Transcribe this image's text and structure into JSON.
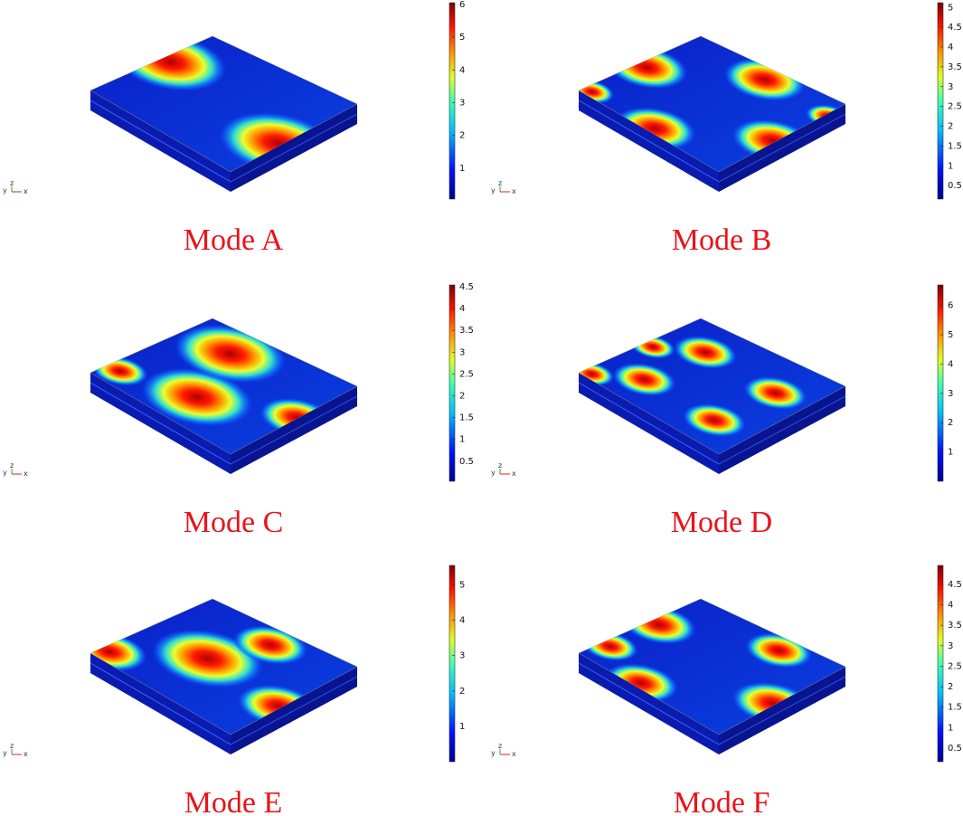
{
  "triad": [
    "y",
    "z",
    "x"
  ],
  "panels": [
    {
      "label": "Mode A",
      "colorbar": {
        "range": [
          0.06,
          6.05
        ],
        "ticks": [
          1,
          2,
          3,
          4,
          5,
          6
        ]
      }
    },
    {
      "label": "Mode B",
      "colorbar": {
        "range": [
          0.16,
          5.12
        ],
        "ticks": [
          0.5,
          1,
          1.5,
          2,
          2.5,
          3,
          3.5,
          4,
          4.5,
          5
        ]
      }
    },
    {
      "label": "Mode C",
      "colorbar": {
        "range": [
          0.04,
          4.54
        ],
        "ticks": [
          0.5,
          1,
          1.5,
          2,
          2.5,
          3,
          3.5,
          4,
          4.5
        ]
      }
    },
    {
      "label": "Mode D",
      "colorbar": {
        "range": [
          0,
          6.7
        ],
        "ticks": [
          1,
          2,
          3,
          4,
          5,
          6
        ]
      }
    },
    {
      "label": "Mode E",
      "colorbar": {
        "range": [
          0,
          5.55
        ],
        "ticks": [
          1,
          2,
          3,
          4,
          5
        ]
      }
    },
    {
      "label": "Mode F",
      "colorbar": {
        "range": [
          0.17,
          4.96
        ],
        "ticks": [
          0.5,
          1,
          1.5,
          2,
          2.5,
          3,
          3.5,
          4,
          4.5
        ]
      }
    }
  ]
}
